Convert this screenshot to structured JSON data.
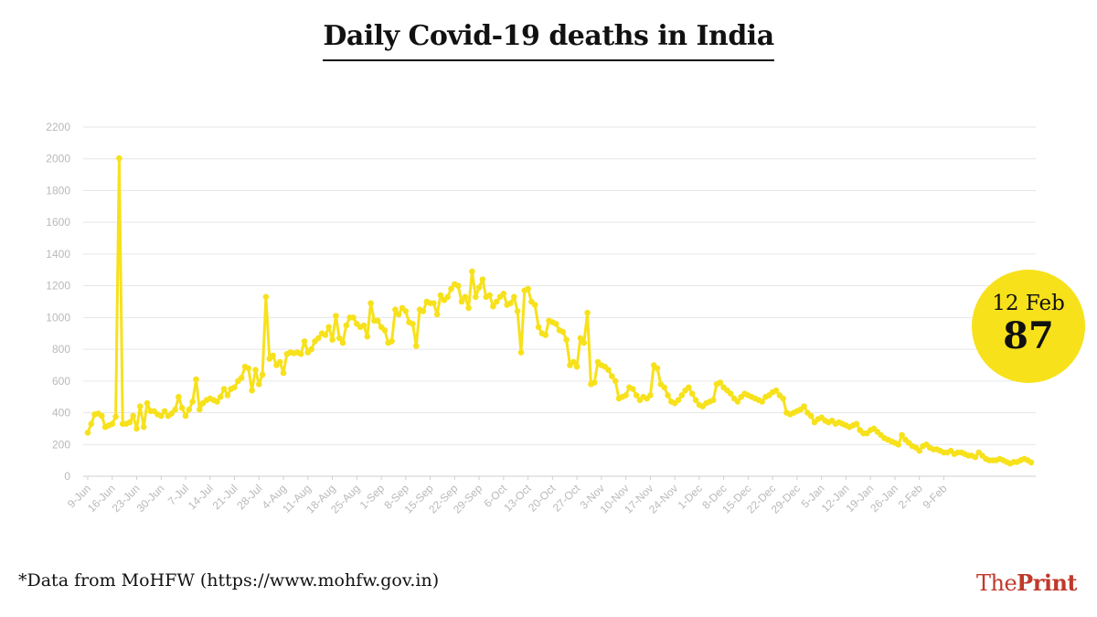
{
  "title": "Daily Covid-19 deaths in India",
  "source_note": "*Data from MoHFW (https://www.mohfw.gov.in)",
  "logo": {
    "the": "The",
    "print": "Print"
  },
  "callout": {
    "date": "12 Feb",
    "value": "87",
    "color": "#f7e11b"
  },
  "chart_data": {
    "type": "line",
    "title": "Daily Covid-19 deaths in India",
    "xlabel": "",
    "ylabel": "",
    "ylim": [
      0,
      2200
    ],
    "y_ticks": [
      0,
      200,
      400,
      600,
      800,
      1000,
      1200,
      1400,
      1600,
      1800,
      2000,
      2200
    ],
    "x_ticks": [
      "9-Jun",
      "16-Jun",
      "23-Jun",
      "30-Jun",
      "7-Jul",
      "14-Jul",
      "21-Jul",
      "28-Jul",
      "4-Aug",
      "11-Aug",
      "18-Aug",
      "25-Aug",
      "1-Sep",
      "8-Sep",
      "15-Sep",
      "22-Sep",
      "29-Sep",
      "6-Oct",
      "13-Oct",
      "20-Oct",
      "27-Oct",
      "3-Nov",
      "10-Nov",
      "17-Nov",
      "24-Nov",
      "1-Dec",
      "8-Dec",
      "15-Dec",
      "22-Dec",
      "29-Dec",
      "5-Jan",
      "12-Jan",
      "19-Jan",
      "26-Jan",
      "2-Feb",
      "9-Feb"
    ],
    "x_start": "9-Jun",
    "x_end": "12-Feb",
    "grid": true,
    "line_color": "#f7e11b",
    "series": [
      {
        "values": [
          275,
          330,
          390,
          395,
          380,
          310,
          320,
          330,
          375,
          2003,
          330,
          330,
          340,
          380,
          300,
          440,
          310,
          460,
          410,
          410,
          390,
          380,
          410,
          380,
          395,
          420,
          500,
          430,
          380,
          420,
          470,
          610,
          420,
          460,
          480,
          490,
          480,
          470,
          500,
          550,
          510,
          550,
          560,
          600,
          620,
          690,
          680,
          540,
          670,
          580,
          640,
          1130,
          740,
          760,
          700,
          720,
          650,
          770,
          780,
          775,
          780,
          770,
          850,
          780,
          800,
          850,
          870,
          900,
          890,
          940,
          860,
          1010,
          870,
          840,
          950,
          1000,
          1000,
          960,
          940,
          950,
          880,
          1090,
          980,
          980,
          940,
          920,
          840,
          850,
          1050,
          1020,
          1060,
          1040,
          970,
          960,
          820,
          1050,
          1040,
          1100,
          1090,
          1090,
          1020,
          1140,
          1110,
          1130,
          1180,
          1210,
          1200,
          1100,
          1130,
          1060,
          1290,
          1130,
          1190,
          1240,
          1130,
          1140,
          1070,
          1100,
          1130,
          1150,
          1080,
          1090,
          1130,
          1040,
          780,
          1170,
          1180,
          1100,
          1080,
          940,
          900,
          890,
          980,
          970,
          960,
          920,
          910,
          860,
          700,
          720,
          690,
          870,
          840,
          1030,
          580,
          590,
          720,
          700,
          690,
          670,
          630,
          600,
          490,
          500,
          510,
          560,
          550,
          510,
          480,
          500,
          490,
          510,
          700,
          680,
          580,
          560,
          510,
          470,
          460,
          480,
          510,
          540,
          560,
          520,
          480,
          450,
          440,
          460,
          470,
          480,
          580,
          590,
          560,
          540,
          520,
          490,
          470,
          500,
          520,
          510,
          500,
          490,
          480,
          470,
          500,
          510,
          530,
          540,
          510,
          490,
          400,
          390,
          400,
          410,
          420,
          440,
          400,
          380,
          340,
          360,
          370,
          350,
          340,
          350,
          330,
          340,
          330,
          320,
          310,
          320,
          330,
          290,
          270,
          270,
          290,
          300,
          280,
          260,
          240,
          230,
          220,
          210,
          200,
          260,
          230,
          210,
          190,
          180,
          160,
          190,
          200,
          180,
          170,
          170,
          160,
          150,
          150,
          160,
          140,
          150,
          150,
          140,
          130,
          130,
          120,
          150,
          130,
          110,
          100,
          100,
          100,
          110,
          100,
          90,
          80,
          90,
          90,
          100,
          110,
          100,
          87
        ]
      }
    ]
  }
}
